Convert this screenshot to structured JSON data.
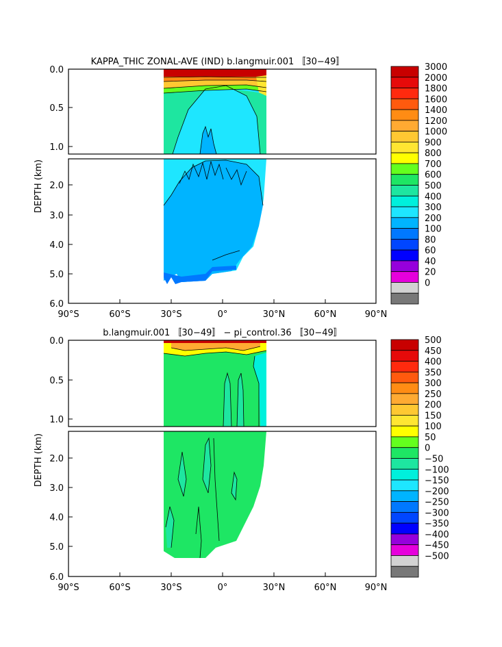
{
  "chart_data": [
    {
      "type": "heatmap",
      "title": "KAPPA_THIC ZONAL-AVE (IND) b.langmuir.001 〚30−49〛",
      "ylabel": "DEPTH (km)",
      "x_ticks": [
        "90°S",
        "60°S",
        "30°S",
        "0°",
        "30°N",
        "60°N",
        "90°N"
      ],
      "upper_y_ticks": [
        "0.0",
        "0.5",
        "1.0"
      ],
      "lower_y_ticks": [
        "2.0",
        "3.0",
        "4.0",
        "5.0",
        "6.0"
      ],
      "colorbar_labels": [
        "3000",
        "2000",
        "1800",
        "1600",
        "1400",
        "1200",
        "1000",
        "900",
        "800",
        "700",
        "600",
        "500",
        "400",
        "300",
        "200",
        "100",
        "80",
        "60",
        "40",
        "20",
        "0"
      ],
      "colorbar_colors": [
        "#c80000",
        "#e60a0a",
        "#ff2a0e",
        "#ff5a0e",
        "#ff8c14",
        "#ffaa32",
        "#ffc832",
        "#ffe632",
        "#ffff00",
        "#64ff1e",
        "#1ee664",
        "#1ee6a0",
        "#00f0dc",
        "#1ee6ff",
        "#00b4ff",
        "#0078ff",
        "#0046ff",
        "#0000ff",
        "#9600dc",
        "#e600dc",
        "#d2d2d2",
        "#787878"
      ]
    },
    {
      "type": "heatmap",
      "title": "b.langmuir.001 〚30−49〛 − pi_control.36 〚30−49〛",
      "ylabel": "DEPTH (km)",
      "x_ticks": [
        "90°S",
        "60°S",
        "30°S",
        "0°",
        "30°N",
        "60°N",
        "90°N"
      ],
      "upper_y_ticks": [
        "0.0",
        "0.5",
        "1.0"
      ],
      "lower_y_ticks": [
        "2.0",
        "3.0",
        "4.0",
        "5.0",
        "6.0"
      ],
      "colorbar_labels": [
        "500",
        "450",
        "400",
        "350",
        "300",
        "250",
        "200",
        "150",
        "100",
        "50",
        "0",
        "−50",
        "−100",
        "−150",
        "−200",
        "−250",
        "−300",
        "−350",
        "−400",
        "−450",
        "−500"
      ],
      "colorbar_colors": [
        "#c80000",
        "#e60a0a",
        "#ff2a0e",
        "#ff5a0e",
        "#ff8c14",
        "#ffaa32",
        "#ffc832",
        "#ffe632",
        "#ffff00",
        "#64ff1e",
        "#1ee664",
        "#1ee6a0",
        "#00f0dc",
        "#1ee6ff",
        "#00b4ff",
        "#0078ff",
        "#0046ff",
        "#0000ff",
        "#9600dc",
        "#e600dc",
        "#d2d2d2",
        "#787878"
      ]
    }
  ]
}
